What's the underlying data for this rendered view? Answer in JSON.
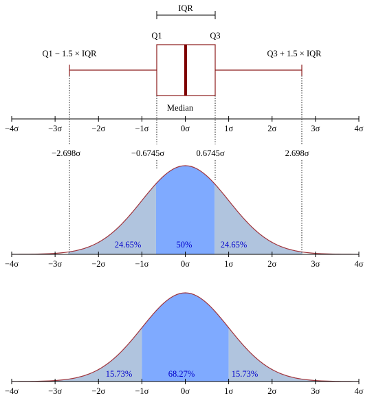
{
  "colors": {
    "box_stroke": "#8b1a1a",
    "median_line": "#7f0000",
    "tail_fill": "#b0c4de",
    "center_fill": "#7faaff",
    "curve_stroke": "#a0343c",
    "percent_text": "#0000cc",
    "axis": "#000000",
    "dotted": "#000000"
  },
  "sigma_ticks": [
    "−4σ",
    "−3σ",
    "−2σ",
    "−1σ",
    "0σ",
    "1σ",
    "2σ",
    "3σ",
    "4σ"
  ],
  "boxplot": {
    "iqr_label": "IQR",
    "q1_label": "Q1",
    "q3_label": "Q3",
    "median_label": "Median",
    "lower_whisker_label": "Q1 − 1.5 × IQR",
    "upper_whisker_label": "Q3 + 1.5 × IQR"
  },
  "quantile_values": [
    {
      "text": "−2.698σ",
      "sigma": -2.698
    },
    {
      "text": "−0.6745σ",
      "sigma": -0.6745
    },
    {
      "text": "0.6745σ",
      "sigma": 0.6745
    },
    {
      "text": "2.698σ",
      "sigma": 2.698
    }
  ],
  "panel_iqr": {
    "left_pct": "24.65%",
    "center_pct": "50%",
    "right_pct": "24.65%",
    "bounds_sigma": [
      -2.698,
      -0.6745,
      0.6745,
      2.698
    ]
  },
  "panel_sd": {
    "left_pct": "15.73%",
    "center_pct": "68.27%",
    "right_pct": "15.73%",
    "bounds_sigma": [
      -1,
      1
    ]
  }
}
